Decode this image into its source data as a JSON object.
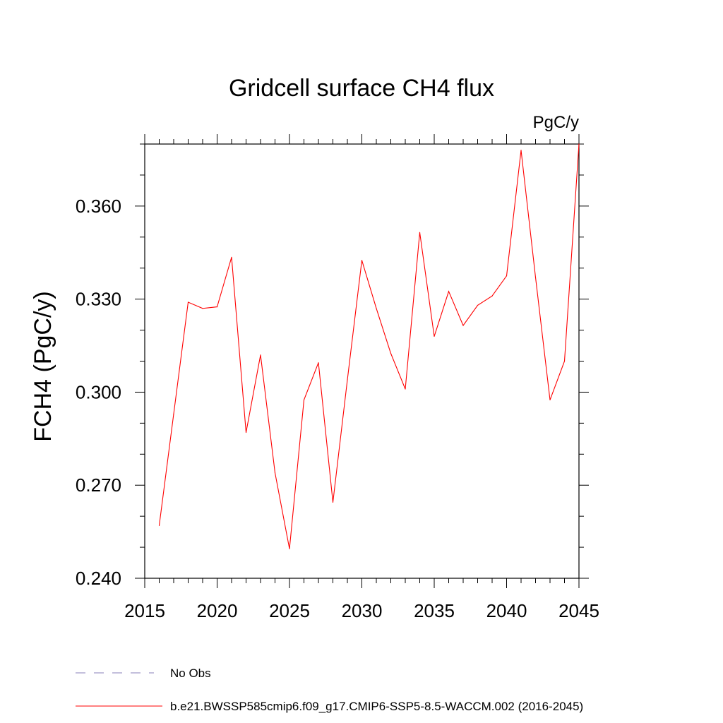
{
  "chart_data": {
    "type": "line",
    "title": "Gridcell surface CH4 flux",
    "units": "PgC/y",
    "ylabel": "FCH4  (PgC/y)",
    "xlabel": "",
    "xlim": [
      2015,
      2045
    ],
    "ylim": [
      0.24,
      0.38
    ],
    "x_ticks": [
      2015,
      2020,
      2025,
      2030,
      2035,
      2040,
      2045
    ],
    "x_tick_labels": [
      "2015",
      "2020",
      "2025",
      "2030",
      "2035",
      "2040",
      "2045"
    ],
    "y_ticks": [
      0.24,
      0.27,
      0.3,
      0.33,
      0.36
    ],
    "y_tick_labels": [
      "0.240",
      "0.270",
      "0.300",
      "0.330",
      "0.360"
    ],
    "grid": false,
    "legend_placement": "bottom",
    "series": [
      {
        "name": "b.e21.BWSSP585cmip6.f09_g17.CMIP6-SSP5-8.5-WACCM.002 (2016-2045)",
        "color": "#ff0000",
        "x": [
          2016,
          2017,
          2018,
          2019,
          2020,
          2021,
          2022,
          2023,
          2024,
          2025,
          2026,
          2027,
          2028,
          2029,
          2030,
          2031,
          2032,
          2033,
          2034,
          2035,
          2036,
          2037,
          2038,
          2039,
          2040,
          2041,
          2042,
          2043,
          2044,
          2045
        ],
        "values": [
          0.257,
          0.293,
          0.329,
          0.327,
          0.3275,
          0.3435,
          0.287,
          0.312,
          0.274,
          0.2495,
          0.2975,
          0.3095,
          0.2645,
          0.304,
          0.3425,
          0.327,
          0.3125,
          0.301,
          0.3515,
          0.318,
          0.3325,
          0.3215,
          0.328,
          0.331,
          0.3375,
          0.378,
          0.337,
          0.2975,
          0.31,
          0.38
        ]
      }
    ],
    "legend": [
      {
        "label": "No Obs",
        "color": "#8a7fb8",
        "style": "dashed"
      },
      {
        "label": "b.e21.BWSSP585cmip6.f09_g17.CMIP6-SSP5-8.5-WACCM.002 (2016-2045)",
        "color": "#ff0000",
        "style": "solid"
      }
    ]
  }
}
